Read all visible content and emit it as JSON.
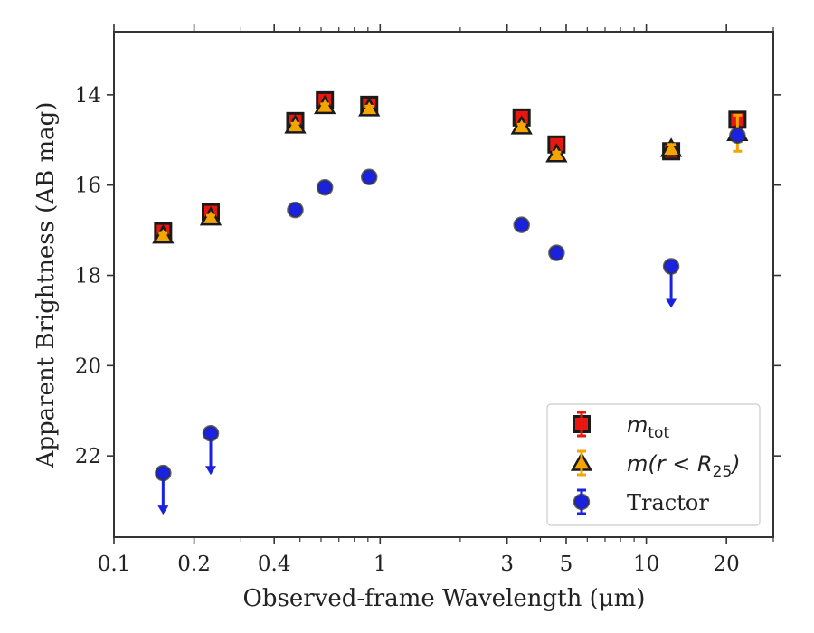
{
  "chart_data": {
    "type": "scatter",
    "xscale": "log",
    "yscale": "linear",
    "yaxis_inverted": true,
    "xlim": [
      0.1,
      30
    ],
    "ylim": [
      23.8,
      12.6
    ],
    "xlabel": "Observed-frame Wavelength (μm)",
    "ylabel": "Apparent Brightness (AB mag)",
    "x_ticks": [
      0.1,
      0.2,
      0.4,
      1,
      3,
      5,
      10,
      20
    ],
    "x_tick_labels": [
      "0.1",
      "0.2",
      "0.4",
      "1",
      "3",
      "5",
      "10",
      "20"
    ],
    "y_ticks": [
      14,
      16,
      18,
      20,
      22
    ],
    "y_tick_labels": [
      "14",
      "16",
      "18",
      "20",
      "22"
    ],
    "legend_position": "lower-right",
    "series": [
      {
        "name": "m_tot",
        "legend_main": "m",
        "legend_sub": "tot",
        "marker": "square",
        "color": "#e8170f",
        "points": [
          {
            "x": 0.153,
            "y": 17.02,
            "err": 0.05
          },
          {
            "x": 0.231,
            "y": 16.6,
            "err": 0.05
          },
          {
            "x": 0.48,
            "y": 14.58,
            "err": 0.05
          },
          {
            "x": 0.62,
            "y": 14.12,
            "err": 0.05
          },
          {
            "x": 0.91,
            "y": 14.22,
            "err": 0.05
          },
          {
            "x": 3.4,
            "y": 14.5,
            "err": 0.05
          },
          {
            "x": 4.6,
            "y": 15.1,
            "err": 0.05
          },
          {
            "x": 12.4,
            "y": 15.25,
            "err": 0.05
          },
          {
            "x": 22.0,
            "y": 14.55,
            "err": 0.05
          }
        ]
      },
      {
        "name": "m(r < R25)",
        "legend_main": "m(r < R",
        "legend_sub": "25",
        "legend_end": ")",
        "marker": "triangle",
        "color": "#f5a500",
        "points": [
          {
            "x": 0.153,
            "y": 17.12,
            "err": 0.05
          },
          {
            "x": 0.231,
            "y": 16.72,
            "err": 0.05
          },
          {
            "x": 0.48,
            "y": 14.68,
            "err": 0.05
          },
          {
            "x": 0.62,
            "y": 14.25,
            "err": 0.05
          },
          {
            "x": 0.91,
            "y": 14.3,
            "err": 0.05
          },
          {
            "x": 3.4,
            "y": 14.7,
            "err": 0.05
          },
          {
            "x": 4.6,
            "y": 15.32,
            "err": 0.05
          },
          {
            "x": 12.4,
            "y": 15.2,
            "err": 0.1
          },
          {
            "x": 22.0,
            "y": 14.85,
            "err": 0.4
          }
        ]
      },
      {
        "name": "Tractor",
        "marker": "circle",
        "color": "#1a22e0",
        "points": [
          {
            "x": 0.153,
            "y": 22.38,
            "err": 0.05,
            "upper_limit": true
          },
          {
            "x": 0.231,
            "y": 21.5,
            "err": 0.05,
            "upper_limit": true
          },
          {
            "x": 0.48,
            "y": 16.55,
            "err": 0.05
          },
          {
            "x": 0.62,
            "y": 16.05,
            "err": 0.05
          },
          {
            "x": 0.91,
            "y": 15.82,
            "err": 0.05
          },
          {
            "x": 3.4,
            "y": 16.88,
            "err": 0.05
          },
          {
            "x": 4.6,
            "y": 17.5,
            "err": 0.05
          },
          {
            "x": 12.4,
            "y": 17.8,
            "err": 0.05,
            "upper_limit": true
          },
          {
            "x": 22.0,
            "y": 14.9,
            "err": 0.05
          }
        ]
      }
    ]
  }
}
